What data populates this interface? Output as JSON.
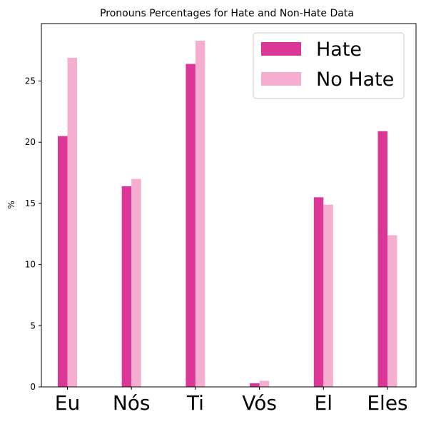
{
  "chart_data": {
    "type": "bar",
    "title": "Pronouns Percentages for Hate and Non-Hate Data",
    "xlabel": "",
    "ylabel": "%",
    "categories": [
      "Eu",
      "Nós",
      "Ti",
      "Vós",
      "El",
      "Eles"
    ],
    "series": [
      {
        "name": "Hate",
        "color": "#dc3797",
        "values": [
          20.5,
          16.4,
          26.4,
          0.3,
          15.5,
          20.9
        ]
      },
      {
        "name": "No Hate",
        "color": "#f6aed0",
        "values": [
          26.9,
          17.0,
          28.3,
          0.5,
          14.9,
          12.4
        ]
      }
    ],
    "ylim": [
      0,
      29.7
    ],
    "yticks": [
      0,
      5,
      10,
      15,
      20,
      25
    ],
    "grid": false,
    "legend_position": "top-right"
  }
}
